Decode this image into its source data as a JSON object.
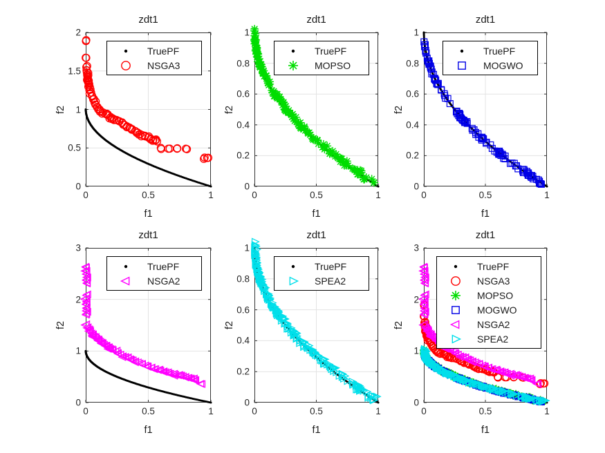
{
  "figure": {
    "background": "#ffffff"
  },
  "colors": {
    "axis_box": "#333333",
    "grid": "#e3e3e3",
    "tick_text": "#262626",
    "label_text": "#1a1a1a",
    "true_pf": "#000000",
    "nsga3": "#ff0000",
    "mopso": "#00dd00",
    "mogwo": "#0000e6",
    "nsga2": "#ff00ff",
    "spea2": "#00dfea"
  },
  "chart_data": {
    "type": "scatter",
    "problem": "zdt1",
    "true_front_formula": "f2 = 1 - sqrt(f1)",
    "datasets": {
      "TruePF": {
        "label": "TruePF",
        "marker": "dot",
        "color": "#000000",
        "mode": "curve",
        "n": 190,
        "anchors": [
          [
            0,
            1
          ],
          [
            0.0025,
            0.95
          ],
          [
            0.01,
            0.9
          ],
          [
            0.0225,
            0.85
          ],
          [
            0.04,
            0.8
          ],
          [
            0.0625,
            0.75
          ],
          [
            0.09,
            0.7
          ],
          [
            0.1225,
            0.65
          ],
          [
            0.16,
            0.6
          ],
          [
            0.2025,
            0.55
          ],
          [
            0.25,
            0.5
          ],
          [
            0.3025,
            0.45
          ],
          [
            0.36,
            0.4
          ],
          [
            0.4225,
            0.35
          ],
          [
            0.49,
            0.3
          ],
          [
            0.5625,
            0.25
          ],
          [
            0.64,
            0.2
          ],
          [
            0.7225,
            0.15
          ],
          [
            0.81,
            0.1
          ],
          [
            0.9025,
            0.05
          ],
          [
            1,
            0
          ]
        ]
      },
      "NSGA3": {
        "label": "NSGA3",
        "marker": "circle",
        "color": "#ff0000",
        "mode": "points",
        "dup": 1,
        "jx": 0.012,
        "jy": 0.018,
        "seed": 3,
        "points": [
          [
            0.004,
            1.9
          ],
          [
            0.004,
            1.67
          ],
          [
            0.005,
            1.55
          ],
          [
            0.007,
            1.51
          ],
          [
            0.009,
            1.48
          ],
          [
            0.011,
            1.45
          ],
          [
            0.013,
            1.43
          ],
          [
            0.015,
            1.4
          ],
          [
            0.018,
            1.37
          ],
          [
            0.02,
            1.35
          ],
          [
            0.024,
            1.37
          ],
          [
            0.028,
            1.33
          ],
          [
            0.033,
            1.29
          ],
          [
            0.038,
            1.26
          ],
          [
            0.043,
            1.22
          ],
          [
            0.05,
            1.18
          ],
          [
            0.06,
            1.13
          ],
          [
            0.07,
            1.09
          ],
          [
            0.08,
            1.06
          ],
          [
            0.09,
            1.03
          ],
          [
            0.1,
            1.0
          ],
          [
            0.12,
            0.98
          ],
          [
            0.14,
            0.96
          ],
          [
            0.16,
            0.94
          ],
          [
            0.18,
            0.92
          ],
          [
            0.2,
            0.9
          ],
          [
            0.215,
            0.885
          ],
          [
            0.23,
            0.87
          ],
          [
            0.25,
            0.86
          ],
          [
            0.27,
            0.845
          ],
          [
            0.29,
            0.825
          ],
          [
            0.31,
            0.8
          ],
          [
            0.33,
            0.78
          ],
          [
            0.35,
            0.765
          ],
          [
            0.37,
            0.745
          ],
          [
            0.395,
            0.72
          ],
          [
            0.415,
            0.7
          ],
          [
            0.435,
            0.68
          ],
          [
            0.455,
            0.665
          ],
          [
            0.475,
            0.65
          ],
          [
            0.5,
            0.635
          ],
          [
            0.52,
            0.62
          ],
          [
            0.54,
            0.605
          ],
          [
            0.555,
            0.595
          ],
          [
            0.57,
            0.585
          ],
          [
            0.6,
            0.5
          ],
          [
            0.66,
            0.49
          ],
          [
            0.73,
            0.49
          ],
          [
            0.8,
            0.49
          ],
          [
            0.95,
            0.375
          ],
          [
            0.97,
            0.37
          ]
        ]
      },
      "MOPSO": {
        "label": "MOPSO",
        "marker": "asterisk",
        "color": "#00dd00",
        "mode": "cloud",
        "n": 160,
        "x_pow": 1.8,
        "offset": 0.008,
        "jx": 0.006,
        "jy": 0.022,
        "seed": 11,
        "base": "TruePF"
      },
      "MOGWO": {
        "label": "MOGWO",
        "marker": "square",
        "color": "#0000e6",
        "mode": "clusters",
        "jx": 0.004,
        "jy": 0.012,
        "offset": 0,
        "seed": 21,
        "base": "TruePF",
        "clusters": [
          {
            "range": [
              0,
              0.12
            ],
            "n": 30
          },
          {
            "range": [
              0.03,
              0.25
            ],
            "n": 12
          },
          {
            "range": [
              0.25,
              0.47
            ],
            "n": 30
          },
          {
            "range": [
              0.47,
              0.6
            ],
            "n": 10
          },
          {
            "range": [
              0.6,
              0.67
            ],
            "n": 14
          },
          {
            "range": [
              0.7,
              0.78
            ],
            "n": 6
          },
          {
            "range": [
              0.8,
              0.97
            ],
            "n": 28
          }
        ]
      },
      "NSGA2": {
        "label": "NSGA2",
        "marker": "triangle-left",
        "color": "#ff00ff",
        "mode": "points",
        "dup": 1,
        "jx": 0.014,
        "jy": 0.02,
        "seed": 31,
        "points": [
          [
            0.006,
            2.62
          ],
          [
            0.01,
            2.55
          ],
          [
            0.006,
            2.49
          ],
          [
            0.011,
            2.43
          ],
          [
            0.007,
            2.37
          ],
          [
            0.012,
            2.31
          ],
          [
            0.008,
            2.08
          ],
          [
            0.005,
            2.02
          ],
          [
            0.01,
            1.96
          ],
          [
            0.007,
            1.9
          ],
          [
            0.011,
            1.84
          ],
          [
            0.006,
            1.78
          ],
          [
            0.009,
            1.72
          ],
          [
            0.008,
            1.52
          ],
          [
            0.02,
            1.46
          ],
          [
            0.03,
            1.42
          ],
          [
            0.04,
            1.38
          ],
          [
            0.05,
            1.34
          ],
          [
            0.06,
            1.31
          ],
          [
            0.07,
            1.28
          ],
          [
            0.08,
            1.26
          ],
          [
            0.09,
            1.24
          ],
          [
            0.1,
            1.22
          ],
          [
            0.11,
            1.2
          ],
          [
            0.12,
            1.18
          ],
          [
            0.13,
            1.16
          ],
          [
            0.14,
            1.14
          ],
          [
            0.15,
            1.12
          ],
          [
            0.16,
            1.1
          ],
          [
            0.17,
            1.09
          ],
          [
            0.18,
            1.07
          ],
          [
            0.19,
            1.06
          ],
          [
            0.2,
            1.04
          ],
          [
            0.22,
            1.02
          ],
          [
            0.24,
            0.99
          ],
          [
            0.26,
            0.96
          ],
          [
            0.28,
            0.93
          ],
          [
            0.3,
            0.9
          ],
          [
            0.32,
            0.88
          ],
          [
            0.34,
            0.86
          ],
          [
            0.36,
            0.84
          ],
          [
            0.38,
            0.82
          ],
          [
            0.4,
            0.8
          ],
          [
            0.42,
            0.78
          ],
          [
            0.45,
            0.75
          ],
          [
            0.48,
            0.72
          ],
          [
            0.5,
            0.7
          ],
          [
            0.53,
            0.68
          ],
          [
            0.56,
            0.65
          ],
          [
            0.58,
            0.63
          ],
          [
            0.6,
            0.62
          ],
          [
            0.62,
            0.6
          ],
          [
            0.64,
            0.59
          ],
          [
            0.66,
            0.58
          ],
          [
            0.68,
            0.56
          ],
          [
            0.7,
            0.55
          ],
          [
            0.72,
            0.54
          ],
          [
            0.74,
            0.53
          ],
          [
            0.76,
            0.52
          ],
          [
            0.78,
            0.51
          ],
          [
            0.8,
            0.5
          ],
          [
            0.82,
            0.48
          ],
          [
            0.84,
            0.47
          ],
          [
            0.86,
            0.46
          ],
          [
            0.88,
            0.44
          ],
          [
            0.93,
            0.36
          ]
        ]
      },
      "SPEA2": {
        "label": "SPEA2",
        "marker": "triangle-right",
        "color": "#00dfea",
        "mode": "cloud",
        "n": 215,
        "x_pow": 1.8,
        "offset": 0.01,
        "jx": 0.006,
        "jy": 0.02,
        "seed": 41,
        "base": "TruePF",
        "extra_points": [
          [
            0.004,
            1.04
          ],
          [
            0.009,
            1.01
          ],
          [
            0.016,
            0.99
          ]
        ]
      }
    },
    "subplots": [
      {
        "name": "nsga3",
        "title": "zdt1",
        "xlabel": "f1",
        "ylabel": "f2",
        "xlim": [
          0,
          1
        ],
        "ylim": [
          0,
          2
        ],
        "xticks": [
          0,
          0.5,
          1
        ],
        "xtick_labels": [
          "0",
          "0.5",
          "1"
        ],
        "yticks": [
          0,
          0.5,
          1,
          1.5,
          2
        ],
        "ytick_labels": [
          "0",
          "0.5",
          "1",
          "1.5",
          "2"
        ],
        "grid": true,
        "legend_position": "northeast",
        "series": [
          "TruePF",
          "NSGA3"
        ]
      },
      {
        "name": "mopso",
        "title": "zdt1",
        "xlabel": "f1",
        "ylabel": "f2",
        "xlim": [
          0,
          1
        ],
        "ylim": [
          0,
          1
        ],
        "xticks": [
          0,
          0.5,
          1
        ],
        "xtick_labels": [
          "0",
          "0.5",
          "1"
        ],
        "yticks": [
          0,
          0.2,
          0.4,
          0.6,
          0.8,
          1
        ],
        "ytick_labels": [
          "0",
          "0.2",
          "0.4",
          "0.6",
          "0.8",
          "1"
        ],
        "grid": true,
        "legend_position": "northeast",
        "series": [
          "TruePF",
          "MOPSO"
        ]
      },
      {
        "name": "mogwo",
        "title": "zdt1",
        "xlabel": "f1",
        "ylabel": "f2",
        "xlim": [
          0,
          1
        ],
        "ylim": [
          0,
          1
        ],
        "xticks": [
          0,
          0.5,
          1
        ],
        "xtick_labels": [
          "0",
          "0.5",
          "1"
        ],
        "yticks": [
          0,
          0.2,
          0.4,
          0.6,
          0.8,
          1
        ],
        "ytick_labels": [
          "0",
          "0.2",
          "0.4",
          "0.6",
          "0.8",
          "1"
        ],
        "grid": true,
        "legend_position": "northeast",
        "series": [
          "TruePF",
          "MOGWO"
        ]
      },
      {
        "name": "nsga2",
        "title": "zdt1",
        "xlabel": "f1",
        "ylabel": "f2",
        "xlim": [
          0,
          1
        ],
        "ylim": [
          0,
          3
        ],
        "xticks": [
          0,
          0.5,
          1
        ],
        "xtick_labels": [
          "0",
          "0.5",
          "1"
        ],
        "yticks": [
          0,
          1,
          2,
          3
        ],
        "ytick_labels": [
          "0",
          "1",
          "2",
          "3"
        ],
        "grid": true,
        "legend_position": "northeast",
        "series": [
          "TruePF",
          "NSGA2"
        ]
      },
      {
        "name": "spea2",
        "title": "zdt1",
        "xlabel": "f1",
        "ylabel": "f2",
        "xlim": [
          0,
          1
        ],
        "ylim": [
          0,
          1
        ],
        "xticks": [
          0,
          0.5,
          1
        ],
        "xtick_labels": [
          "0",
          "0.5",
          "1"
        ],
        "yticks": [
          0,
          0.2,
          0.4,
          0.6,
          0.8,
          1
        ],
        "ytick_labels": [
          "0",
          "0.2",
          "0.4",
          "0.6",
          "0.8",
          "1"
        ],
        "grid": true,
        "legend_position": "northeast",
        "series": [
          "TruePF",
          "SPEA2"
        ]
      },
      {
        "name": "combined",
        "title": "zdt1",
        "xlabel": "f1",
        "ylabel": "f2",
        "xlim": [
          0,
          1
        ],
        "ylim": [
          0,
          3
        ],
        "xticks": [
          0,
          0.5,
          1
        ],
        "xtick_labels": [
          "0",
          "0.5",
          "1"
        ],
        "yticks": [
          0,
          1,
          2,
          3
        ],
        "ytick_labels": [
          "0",
          "1",
          "2",
          "3"
        ],
        "grid": true,
        "legend_position": "northeast",
        "series": [
          "TruePF",
          "NSGA3",
          "MOPSO",
          "MOGWO",
          "NSGA2",
          "SPEA2"
        ]
      }
    ]
  }
}
